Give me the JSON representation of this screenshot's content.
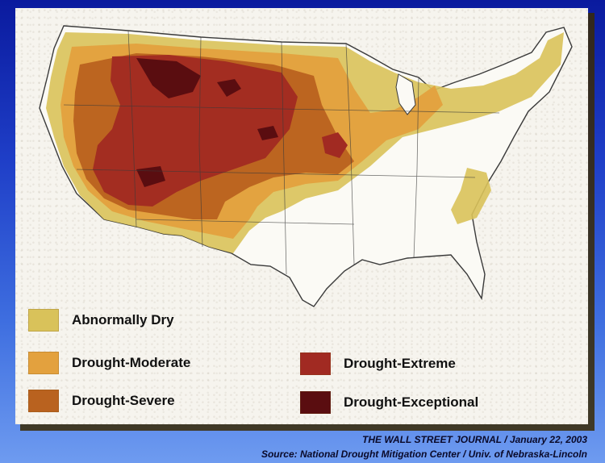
{
  "legend": [
    {
      "label": "Abnormally Dry",
      "color": "#d9c25a"
    },
    {
      "label": "Drought-Moderate",
      "color": "#e3a13e"
    },
    {
      "label": "Drought-Severe",
      "color": "#b9621f"
    },
    {
      "label": "Drought-Extreme",
      "color": "#a12a22"
    },
    {
      "label": "Drought-Exceptional",
      "color": "#5a0d10"
    }
  ],
  "footer": {
    "citation": "THE WALL STREET JOURNAL / January 22, 2003",
    "source": "Source:  National Drought Mitigation Center / Univ. of Nebraska-Lincoln"
  },
  "colors": {
    "background_top": "#0a1a9e",
    "background_bottom": "#6e9bf0",
    "card": "#f6f4ee"
  }
}
